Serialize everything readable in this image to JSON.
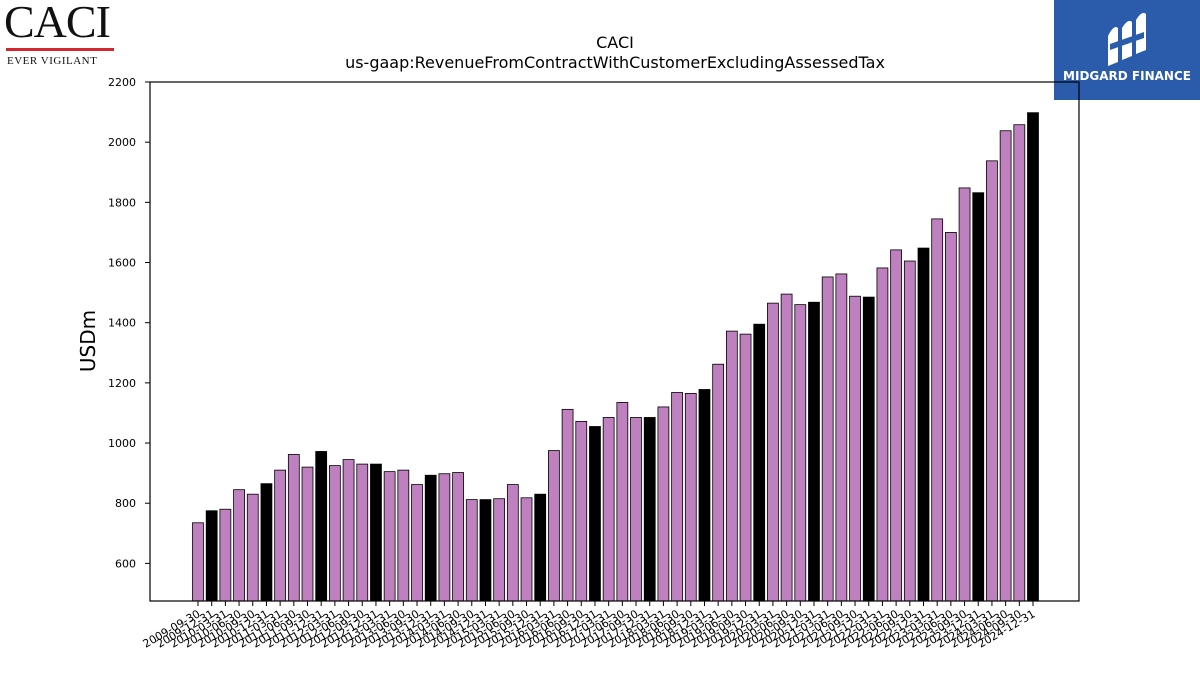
{
  "logos": {
    "left": {
      "name": "CACI",
      "tagline": "EVER VIGILANT"
    },
    "right": {
      "name": "MIDGARD FINANCE"
    }
  },
  "colors": {
    "bar_quarter": "#bf80bf",
    "bar_annual": "#000000",
    "bar_edge": "#000000",
    "caci_red": "#d22630",
    "midgard_blue": "#2a5cab"
  },
  "chart_data": {
    "type": "bar",
    "title": "CACI",
    "subtitle": "us-gaap:RevenueFromContractWithCustomerExcludingAssessedTax",
    "xlabel": "",
    "ylabel": "USDm",
    "ylim": [
      475,
      2200
    ],
    "yticks": [
      600,
      800,
      1000,
      1200,
      1400,
      1600,
      1800,
      2000,
      2200
    ],
    "grid": false,
    "legend": "none",
    "bars": [
      {
        "date": "2009-09-30",
        "value": 735,
        "kind": "quarter"
      },
      {
        "date": "2009-12-31",
        "value": 775,
        "kind": "annual"
      },
      {
        "date": "2010-03-31",
        "value": 780,
        "kind": "quarter"
      },
      {
        "date": "2010-06-30",
        "value": 845,
        "kind": "quarter"
      },
      {
        "date": "2010-09-30",
        "value": 830,
        "kind": "quarter"
      },
      {
        "date": "2010-12-31",
        "value": 865,
        "kind": "annual"
      },
      {
        "date": "2011-03-31",
        "value": 910,
        "kind": "quarter"
      },
      {
        "date": "2011-06-30",
        "value": 962,
        "kind": "quarter"
      },
      {
        "date": "2011-09-30",
        "value": 920,
        "kind": "quarter"
      },
      {
        "date": "2011-12-31",
        "value": 972,
        "kind": "annual"
      },
      {
        "date": "2012-03-31",
        "value": 925,
        "kind": "quarter"
      },
      {
        "date": "2012-06-30",
        "value": 945,
        "kind": "quarter"
      },
      {
        "date": "2012-09-30",
        "value": 930,
        "kind": "quarter"
      },
      {
        "date": "2012-12-31",
        "value": 930,
        "kind": "annual"
      },
      {
        "date": "2013-03-31",
        "value": 905,
        "kind": "quarter"
      },
      {
        "date": "2013-06-30",
        "value": 910,
        "kind": "quarter"
      },
      {
        "date": "2013-09-30",
        "value": 862,
        "kind": "quarter"
      },
      {
        "date": "2013-12-31",
        "value": 893,
        "kind": "annual"
      },
      {
        "date": "2014-03-31",
        "value": 898,
        "kind": "quarter"
      },
      {
        "date": "2014-06-30",
        "value": 902,
        "kind": "quarter"
      },
      {
        "date": "2014-09-30",
        "value": 812,
        "kind": "quarter"
      },
      {
        "date": "2014-12-31",
        "value": 812,
        "kind": "annual"
      },
      {
        "date": "2015-03-31",
        "value": 815,
        "kind": "quarter"
      },
      {
        "date": "2015-06-30",
        "value": 862,
        "kind": "quarter"
      },
      {
        "date": "2015-09-30",
        "value": 818,
        "kind": "quarter"
      },
      {
        "date": "2015-12-31",
        "value": 830,
        "kind": "annual"
      },
      {
        "date": "2016-03-31",
        "value": 975,
        "kind": "quarter"
      },
      {
        "date": "2016-06-30",
        "value": 1112,
        "kind": "quarter"
      },
      {
        "date": "2016-09-30",
        "value": 1072,
        "kind": "quarter"
      },
      {
        "date": "2016-12-31",
        "value": 1055,
        "kind": "annual"
      },
      {
        "date": "2017-03-31",
        "value": 1085,
        "kind": "quarter"
      },
      {
        "date": "2017-06-30",
        "value": 1135,
        "kind": "quarter"
      },
      {
        "date": "2017-09-30",
        "value": 1085,
        "kind": "quarter"
      },
      {
        "date": "2017-12-31",
        "value": 1085,
        "kind": "annual"
      },
      {
        "date": "2018-03-31",
        "value": 1120,
        "kind": "quarter"
      },
      {
        "date": "2018-06-30",
        "value": 1168,
        "kind": "quarter"
      },
      {
        "date": "2018-09-30",
        "value": 1165,
        "kind": "quarter"
      },
      {
        "date": "2018-12-31",
        "value": 1178,
        "kind": "annual"
      },
      {
        "date": "2019-03-31",
        "value": 1262,
        "kind": "quarter"
      },
      {
        "date": "2019-06-30",
        "value": 1372,
        "kind": "quarter"
      },
      {
        "date": "2019-09-30",
        "value": 1362,
        "kind": "quarter"
      },
      {
        "date": "2019-12-31",
        "value": 1395,
        "kind": "annual"
      },
      {
        "date": "2020-03-31",
        "value": 1465,
        "kind": "quarter"
      },
      {
        "date": "2020-06-30",
        "value": 1495,
        "kind": "quarter"
      },
      {
        "date": "2020-09-30",
        "value": 1460,
        "kind": "quarter"
      },
      {
        "date": "2020-12-31",
        "value": 1468,
        "kind": "annual"
      },
      {
        "date": "2021-03-31",
        "value": 1552,
        "kind": "quarter"
      },
      {
        "date": "2021-06-30",
        "value": 1562,
        "kind": "quarter"
      },
      {
        "date": "2021-09-30",
        "value": 1488,
        "kind": "quarter"
      },
      {
        "date": "2021-12-31",
        "value": 1485,
        "kind": "annual"
      },
      {
        "date": "2022-03-31",
        "value": 1582,
        "kind": "quarter"
      },
      {
        "date": "2022-06-30",
        "value": 1642,
        "kind": "quarter"
      },
      {
        "date": "2022-09-30",
        "value": 1605,
        "kind": "quarter"
      },
      {
        "date": "2022-12-31",
        "value": 1648,
        "kind": "annual"
      },
      {
        "date": "2023-03-31",
        "value": 1745,
        "kind": "quarter"
      },
      {
        "date": "2023-06-30",
        "value": 1700,
        "kind": "quarter"
      },
      {
        "date": "2023-09-30",
        "value": 1848,
        "kind": "quarter"
      },
      {
        "date": "2023-12-31",
        "value": 1832,
        "kind": "annual"
      },
      {
        "date": "2024-03-31",
        "value": 1938,
        "kind": "quarter"
      },
      {
        "date": "2024-06-30",
        "value": 2038,
        "kind": "quarter"
      },
      {
        "date": "2024-09-30",
        "value": 2058,
        "kind": "quarter"
      },
      {
        "date": "2024-12-31",
        "value": 2098,
        "kind": "annual"
      }
    ]
  }
}
